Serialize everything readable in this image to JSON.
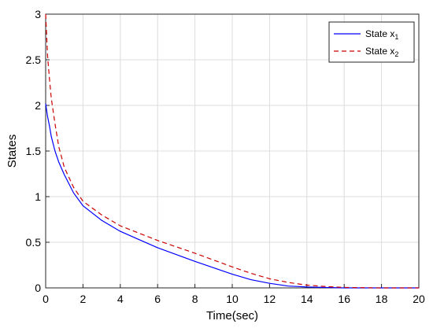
{
  "chart_data": {
    "type": "line",
    "title": "",
    "xlabel": "Time(sec)",
    "ylabel": "States",
    "xlim": [
      0,
      20
    ],
    "ylim": [
      0,
      3
    ],
    "xticks": [
      0,
      2,
      4,
      6,
      8,
      10,
      12,
      14,
      16,
      18,
      20
    ],
    "yticks": [
      0,
      0.5,
      1,
      1.5,
      2,
      2.5,
      3
    ],
    "ytick_labels": [
      "0",
      "0.5",
      "1",
      "1.5",
      "2",
      "2.5",
      "3"
    ],
    "grid": true,
    "legend_position": "top-right",
    "series": [
      {
        "name": "State x",
        "subscript": "1",
        "color": "#0000ff",
        "style": "solid",
        "x": [
          0,
          0.1,
          0.2,
          0.3,
          0.5,
          0.7,
          1.0,
          1.5,
          2.0,
          3.0,
          4.0,
          5.0,
          6.0,
          8.0,
          10.0,
          11.0,
          12.0,
          13.0,
          14.0,
          15.0,
          16.0,
          18.0,
          20.0
        ],
        "y": [
          2.02,
          1.88,
          1.78,
          1.66,
          1.5,
          1.38,
          1.24,
          1.04,
          0.9,
          0.74,
          0.62,
          0.53,
          0.44,
          0.29,
          0.15,
          0.09,
          0.05,
          0.02,
          0.01,
          0.005,
          0.0,
          0.0,
          0.0
        ]
      },
      {
        "name": "State x",
        "subscript": "2",
        "color": "#cc0000",
        "style": "dashed",
        "x": [
          0,
          0.1,
          0.2,
          0.3,
          0.5,
          0.7,
          1.0,
          1.5,
          2.0,
          3.0,
          4.0,
          5.0,
          6.0,
          8.0,
          10.0,
          11.0,
          12.0,
          13.0,
          14.0,
          15.0,
          16.0,
          18.0,
          20.0
        ],
        "y": [
          3.0,
          2.55,
          2.3,
          2.08,
          1.8,
          1.55,
          1.32,
          1.1,
          0.95,
          0.8,
          0.68,
          0.6,
          0.52,
          0.38,
          0.23,
          0.16,
          0.1,
          0.06,
          0.03,
          0.015,
          0.005,
          0.0,
          0.0
        ]
      }
    ]
  }
}
